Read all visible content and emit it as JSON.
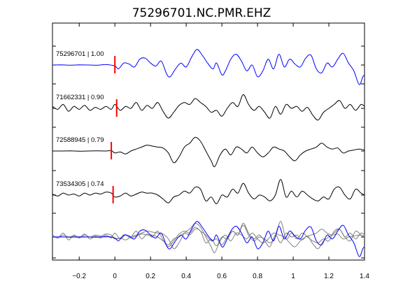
{
  "chart_data": {
    "type": "line",
    "title": "75296701.NC.PMR.EHZ",
    "xlabel": "",
    "ylabel": "",
    "xlim": [
      -0.35,
      1.4
    ],
    "x_ticks": [
      -0.2,
      0,
      0.2,
      0.4,
      0.6,
      0.8,
      1,
      1.2,
      1.4
    ],
    "x_tick_labels": [
      "−0.2",
      "0",
      "0.2",
      "0.4",
      "0.6",
      "0.8",
      "1",
      "1.2",
      "1.4"
    ],
    "pick_time": 0,
    "grid": false,
    "legend": "none",
    "colors": {
      "reference": "#0000ff",
      "trace": "#000000",
      "overlay": "#808080",
      "pick": "#ff0000",
      "axes": "#000000"
    },
    "traces": [
      {
        "label": "75296701 | 1.00",
        "color": "#0000ff",
        "pick": 0.0,
        "points": [
          [
            -0.35,
            0
          ],
          [
            -0.3,
            0.01
          ],
          [
            -0.25,
            -0.01
          ],
          [
            -0.2,
            0.01
          ],
          [
            -0.15,
            0
          ],
          [
            -0.1,
            -0.01
          ],
          [
            -0.05,
            0.02
          ],
          [
            0,
            -0.05
          ],
          [
            0.02,
            -0.2
          ],
          [
            0.05,
            0.1
          ],
          [
            0.08,
            0.05
          ],
          [
            0.11,
            -0.1
          ],
          [
            0.14,
            0.3
          ],
          [
            0.17,
            0.35
          ],
          [
            0.2,
            0.1
          ],
          [
            0.23,
            -0.05
          ],
          [
            0.26,
            0.2
          ],
          [
            0.29,
            -0.45
          ],
          [
            0.31,
            -0.6
          ],
          [
            0.34,
            -0.2
          ],
          [
            0.37,
            0.1
          ],
          [
            0.4,
            -0.1
          ],
          [
            0.43,
            0.4
          ],
          [
            0.46,
            0.8
          ],
          [
            0.49,
            0.5
          ],
          [
            0.52,
            0.1
          ],
          [
            0.55,
            -0.2
          ],
          [
            0.57,
            0.1
          ],
          [
            0.6,
            -0.5
          ],
          [
            0.62,
            -0.3
          ],
          [
            0.65,
            0.3
          ],
          [
            0.68,
            0.55
          ],
          [
            0.71,
            0.2
          ],
          [
            0.74,
            -0.3
          ],
          [
            0.77,
            0.0
          ],
          [
            0.8,
            -0.6
          ],
          [
            0.83,
            -0.3
          ],
          [
            0.86,
            0.3
          ],
          [
            0.89,
            -0.2
          ],
          [
            0.92,
            0.55
          ],
          [
            0.95,
            -0.1
          ],
          [
            0.98,
            0.3
          ],
          [
            1.01,
            0.05
          ],
          [
            1.04,
            -0.1
          ],
          [
            1.07,
            0.35
          ],
          [
            1.1,
            0.5
          ],
          [
            1.13,
            -0.2
          ],
          [
            1.16,
            -0.4
          ],
          [
            1.19,
            0.1
          ],
          [
            1.22,
            -0.1
          ],
          [
            1.25,
            0.3
          ],
          [
            1.28,
            0.6
          ],
          [
            1.31,
            0.1
          ],
          [
            1.34,
            -0.3
          ],
          [
            1.37,
            -1.0
          ],
          [
            1.39,
            -0.6
          ],
          [
            1.4,
            -0.5
          ]
        ]
      },
      {
        "label": "71662331 | 0.90",
        "color": "#000000",
        "pick": 0.01,
        "points": [
          [
            -0.35,
            0.1
          ],
          [
            -0.32,
            -0.05
          ],
          [
            -0.29,
            0.2
          ],
          [
            -0.26,
            -0.15
          ],
          [
            -0.23,
            0.1
          ],
          [
            -0.2,
            -0.05
          ],
          [
            -0.17,
            0.15
          ],
          [
            -0.14,
            -0.1
          ],
          [
            -0.11,
            0.05
          ],
          [
            -0.08,
            -0.05
          ],
          [
            -0.05,
            0.1
          ],
          [
            -0.02,
            -0.05
          ],
          [
            0,
            0.2
          ],
          [
            0.03,
            -0.1
          ],
          [
            0.06,
            0.1
          ],
          [
            0.09,
            0.0
          ],
          [
            0.12,
            0.3
          ],
          [
            0.15,
            -0.1
          ],
          [
            0.18,
            0.15
          ],
          [
            0.21,
            0.0
          ],
          [
            0.24,
            0.3
          ],
          [
            0.27,
            -0.15
          ],
          [
            0.3,
            -0.5
          ],
          [
            0.33,
            -0.2
          ],
          [
            0.36,
            0.15
          ],
          [
            0.39,
            0.3
          ],
          [
            0.42,
            0.2
          ],
          [
            0.45,
            0.5
          ],
          [
            0.48,
            0.3
          ],
          [
            0.51,
            0.1
          ],
          [
            0.54,
            -0.2
          ],
          [
            0.57,
            -0.1
          ],
          [
            0.6,
            -0.4
          ],
          [
            0.63,
            0.0
          ],
          [
            0.66,
            0.3
          ],
          [
            0.69,
            0.1
          ],
          [
            0.72,
            0.7
          ],
          [
            0.75,
            0.2
          ],
          [
            0.78,
            -0.1
          ],
          [
            0.81,
            0.1
          ],
          [
            0.84,
            -0.2
          ],
          [
            0.87,
            -0.5
          ],
          [
            0.9,
            0.1
          ],
          [
            0.93,
            -0.3
          ],
          [
            0.96,
            0.2
          ],
          [
            0.99,
            0.0
          ],
          [
            1.02,
            0.1
          ],
          [
            1.05,
            -0.15
          ],
          [
            1.08,
            0.05
          ],
          [
            1.11,
            -0.35
          ],
          [
            1.14,
            -0.6
          ],
          [
            1.17,
            -0.2
          ],
          [
            1.2,
            0.0
          ],
          [
            1.23,
            0.2
          ],
          [
            1.26,
            0.4
          ],
          [
            1.29,
            0.0
          ],
          [
            1.32,
            0.2
          ],
          [
            1.35,
            -0.1
          ],
          [
            1.38,
            0.2
          ],
          [
            1.4,
            0.1
          ]
        ]
      },
      {
        "label": "72588945 | 0.79",
        "color": "#000000",
        "pick": -0.02,
        "points": [
          [
            -0.35,
            0
          ],
          [
            -0.3,
            0.0
          ],
          [
            -0.25,
            0.01
          ],
          [
            -0.2,
            -0.01
          ],
          [
            -0.15,
            0.0
          ],
          [
            -0.1,
            0.01
          ],
          [
            -0.05,
            0.0
          ],
          [
            -0.02,
            0.02
          ],
          [
            0.0,
            -0.1
          ],
          [
            0.03,
            -0.05
          ],
          [
            0.06,
            -0.15
          ],
          [
            0.09,
            0.0
          ],
          [
            0.12,
            0.1
          ],
          [
            0.15,
            0.2
          ],
          [
            0.18,
            0.3
          ],
          [
            0.21,
            0.25
          ],
          [
            0.24,
            0.2
          ],
          [
            0.27,
            0.15
          ],
          [
            0.3,
            -0.1
          ],
          [
            0.33,
            -0.6
          ],
          [
            0.36,
            -0.3
          ],
          [
            0.39,
            0.2
          ],
          [
            0.42,
            0.4
          ],
          [
            0.45,
            0.7
          ],
          [
            0.48,
            0.5
          ],
          [
            0.51,
            0.0
          ],
          [
            0.54,
            -0.5
          ],
          [
            0.56,
            -0.8
          ],
          [
            0.59,
            -0.2
          ],
          [
            0.62,
            0.1
          ],
          [
            0.65,
            -0.2
          ],
          [
            0.68,
            0.2
          ],
          [
            0.71,
            0.1
          ],
          [
            0.74,
            -0.1
          ],
          [
            0.77,
            0.2
          ],
          [
            0.8,
            -0.1
          ],
          [
            0.83,
            -0.3
          ],
          [
            0.86,
            -0.1
          ],
          [
            0.89,
            0.2
          ],
          [
            0.92,
            0.1
          ],
          [
            0.95,
            0.0
          ],
          [
            0.98,
            -0.3
          ],
          [
            1.01,
            -0.5
          ],
          [
            1.04,
            -0.2
          ],
          [
            1.07,
            0.0
          ],
          [
            1.1,
            0.1
          ],
          [
            1.13,
            0.2
          ],
          [
            1.16,
            0.4
          ],
          [
            1.19,
            0.2
          ],
          [
            1.22,
            0.1
          ],
          [
            1.25,
            0.15
          ],
          [
            1.28,
            -0.1
          ],
          [
            1.31,
            0.0
          ],
          [
            1.34,
            0.05
          ],
          [
            1.37,
            0.1
          ],
          [
            1.4,
            0.05
          ]
        ]
      },
      {
        "label": "73534305 | 0.74",
        "color": "#000000",
        "pick": -0.01,
        "points": [
          [
            -0.35,
            0.05
          ],
          [
            -0.32,
            -0.05
          ],
          [
            -0.29,
            0.1
          ],
          [
            -0.26,
            0.0
          ],
          [
            -0.23,
            0.05
          ],
          [
            -0.2,
            -0.05
          ],
          [
            -0.17,
            0.1
          ],
          [
            -0.14,
            0.0
          ],
          [
            -0.11,
            0.1
          ],
          [
            -0.08,
            0.05
          ],
          [
            -0.05,
            0.15
          ],
          [
            -0.02,
            0.1
          ],
          [
            0,
            -0.1
          ],
          [
            0.03,
            -0.05
          ],
          [
            0.06,
            0.1
          ],
          [
            0.09,
            -0.05
          ],
          [
            0.12,
            0.05
          ],
          [
            0.15,
            0.15
          ],
          [
            0.18,
            0.1
          ],
          [
            0.21,
            0.1
          ],
          [
            0.24,
            0.0
          ],
          [
            0.27,
            -0.2
          ],
          [
            0.3,
            -0.4
          ],
          [
            0.33,
            -0.1
          ],
          [
            0.36,
            0.0
          ],
          [
            0.39,
            0.2
          ],
          [
            0.42,
            0.1
          ],
          [
            0.45,
            0.4
          ],
          [
            0.48,
            0.3
          ],
          [
            0.51,
            -0.3
          ],
          [
            0.54,
            -0.1
          ],
          [
            0.57,
            -0.45
          ],
          [
            0.6,
            0.0
          ],
          [
            0.63,
            -0.1
          ],
          [
            0.66,
            0.3
          ],
          [
            0.69,
            0.1
          ],
          [
            0.72,
            0.6
          ],
          [
            0.75,
            0.1
          ],
          [
            0.78,
            -0.2
          ],
          [
            0.81,
            0.0
          ],
          [
            0.84,
            -0.1
          ],
          [
            0.87,
            -0.3
          ],
          [
            0.9,
            0.0
          ],
          [
            0.93,
            0.8
          ],
          [
            0.96,
            -0.1
          ],
          [
            0.99,
            0.2
          ],
          [
            1.02,
            -0.1
          ],
          [
            1.05,
            0.2
          ],
          [
            1.08,
            0.0
          ],
          [
            1.11,
            -0.2
          ],
          [
            1.14,
            -0.3
          ],
          [
            1.17,
            -0.1
          ],
          [
            1.2,
            -0.2
          ],
          [
            1.23,
            0.3
          ],
          [
            1.26,
            0.4
          ],
          [
            1.29,
            0.0
          ],
          [
            1.32,
            -0.2
          ],
          [
            1.35,
            0.3
          ],
          [
            1.38,
            0.1
          ],
          [
            1.4,
            0.0
          ]
        ]
      }
    ]
  }
}
